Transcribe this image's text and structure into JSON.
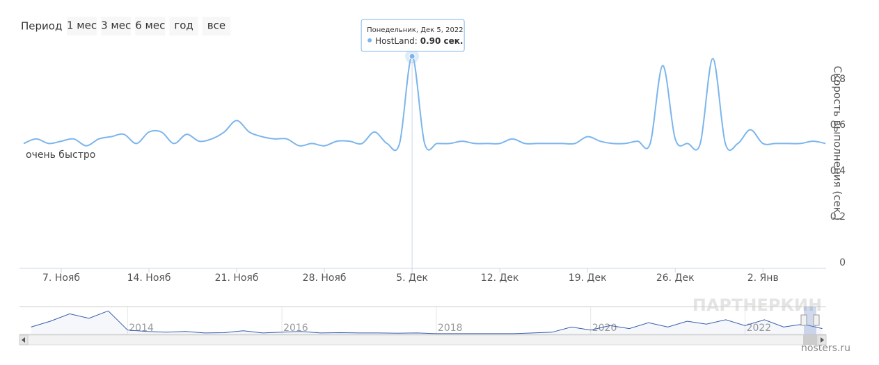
{
  "chart_data": {
    "type": "line",
    "range_selector": {
      "label": "Период",
      "buttons": [
        "1 мес",
        "3 мес",
        "6 мес",
        "год",
        "все"
      ]
    },
    "y_axis_title": "Скорость выполнения (сек.)",
    "plot_band_label": "очень быстро",
    "x": [
      "2022-11-04",
      "2022-11-05",
      "2022-11-06",
      "2022-11-07",
      "2022-11-08",
      "2022-11-09",
      "2022-11-10",
      "2022-11-11",
      "2022-11-12",
      "2022-11-13",
      "2022-11-14",
      "2022-11-15",
      "2022-11-16",
      "2022-11-17",
      "2022-11-18",
      "2022-11-19",
      "2022-11-20",
      "2022-11-21",
      "2022-11-22",
      "2022-11-23",
      "2022-11-24",
      "2022-11-25",
      "2022-11-26",
      "2022-11-27",
      "2022-11-28",
      "2022-11-29",
      "2022-11-30",
      "2022-12-01",
      "2022-12-02",
      "2022-12-03",
      "2022-12-04",
      "2022-12-05",
      "2022-12-06",
      "2022-12-07",
      "2022-12-08",
      "2022-12-09",
      "2022-12-10",
      "2022-12-11",
      "2022-12-12",
      "2022-12-13",
      "2022-12-14",
      "2022-12-15",
      "2022-12-16",
      "2022-12-17",
      "2022-12-18",
      "2022-12-19",
      "2022-12-20",
      "2022-12-21",
      "2022-12-22",
      "2022-12-23",
      "2022-12-24",
      "2022-12-25",
      "2022-12-26",
      "2022-12-27",
      "2022-12-28",
      "2022-12-29",
      "2022-12-30",
      "2022-12-31",
      "2023-01-01",
      "2023-01-02",
      "2023-01-03",
      "2023-01-04",
      "2023-01-05",
      "2023-01-06",
      "2023-01-07"
    ],
    "series": [
      {
        "name": "HostLand",
        "color": "#7cb5ec",
        "values": [
          0.52,
          0.54,
          0.52,
          0.53,
          0.54,
          0.51,
          0.54,
          0.55,
          0.56,
          0.52,
          0.57,
          0.57,
          0.52,
          0.56,
          0.53,
          0.54,
          0.57,
          0.62,
          0.57,
          0.55,
          0.54,
          0.54,
          0.51,
          0.52,
          0.51,
          0.53,
          0.53,
          0.52,
          0.57,
          0.52,
          0.52,
          0.9,
          0.52,
          0.52,
          0.52,
          0.53,
          0.52,
          0.52,
          0.52,
          0.54,
          0.52,
          0.52,
          0.52,
          0.52,
          0.52,
          0.55,
          0.53,
          0.52,
          0.52,
          0.53,
          0.52,
          0.86,
          0.54,
          0.52,
          0.52,
          0.89,
          0.52,
          0.52,
          0.58,
          0.52,
          0.52,
          0.52,
          0.52,
          0.53,
          0.52
        ]
      }
    ],
    "xlim": [
      "2022-11-03T16:00",
      "2023-01-07T01:00"
    ],
    "xticks": [
      {
        "value": "2022-11-07",
        "label": "7. Нояб"
      },
      {
        "value": "2022-11-14",
        "label": "14. Нояб"
      },
      {
        "value": "2022-11-21",
        "label": "21. Нояб"
      },
      {
        "value": "2022-11-28",
        "label": "28. Нояб"
      },
      {
        "value": "2022-12-05",
        "label": "5. Дек"
      },
      {
        "value": "2022-12-12",
        "label": "12. Дек"
      },
      {
        "value": "2022-12-19",
        "label": "19. Дек"
      },
      {
        "value": "2022-12-26",
        "label": "26. Дек"
      },
      {
        "value": "2023-01-02",
        "label": "2. Янв"
      }
    ],
    "ylim": [
      0,
      0.9
    ],
    "yticks": [
      0,
      0.2,
      0.4,
      0.6,
      0.8
    ],
    "tooltip": {
      "x": "2022-12-05",
      "header": "Понедельник, Дек 5, 2022",
      "separator": ":",
      "value": 0.9,
      "value_label": "0.90 сек."
    },
    "navigator": {
      "color": "#335cad",
      "x": [
        2012.75,
        2013.0,
        2013.25,
        2013.5,
        2013.75,
        2014.0,
        2014.25,
        2014.5,
        2014.75,
        2015.0,
        2015.25,
        2015.5,
        2015.75,
        2016.0,
        2016.25,
        2016.5,
        2016.75,
        2017.0,
        2017.25,
        2017.5,
        2017.75,
        2018.0,
        2018.25,
        2018.5,
        2018.75,
        2019.0,
        2019.25,
        2019.5,
        2019.75,
        2020.0,
        2020.25,
        2020.5,
        2020.75,
        2021.0,
        2021.25,
        2021.5,
        2021.75,
        2022.0,
        2022.25,
        2022.5,
        2022.75,
        2023.0
      ],
      "values": [
        1.0,
        1.4,
        1.9,
        1.6,
        2.1,
        0.8,
        0.7,
        0.65,
        0.7,
        0.6,
        0.62,
        0.75,
        0.6,
        0.65,
        0.7,
        0.6,
        0.62,
        0.6,
        0.6,
        0.58,
        0.6,
        0.55,
        0.55,
        0.55,
        0.55,
        0.55,
        0.6,
        0.65,
        1.0,
        0.8,
        1.1,
        0.9,
        1.3,
        1.0,
        1.4,
        1.2,
        1.5,
        1.1,
        1.5,
        1.0,
        1.2,
        0.9
      ],
      "xlim": [
        2012.6,
        2023.05
      ],
      "ylim": [
        0.5,
        2.3
      ],
      "xticks": [
        2014,
        2016,
        2018,
        2020,
        2022
      ]
    },
    "watermark": "ПАРТНЕРКИН",
    "credit": "hosters.ru"
  }
}
